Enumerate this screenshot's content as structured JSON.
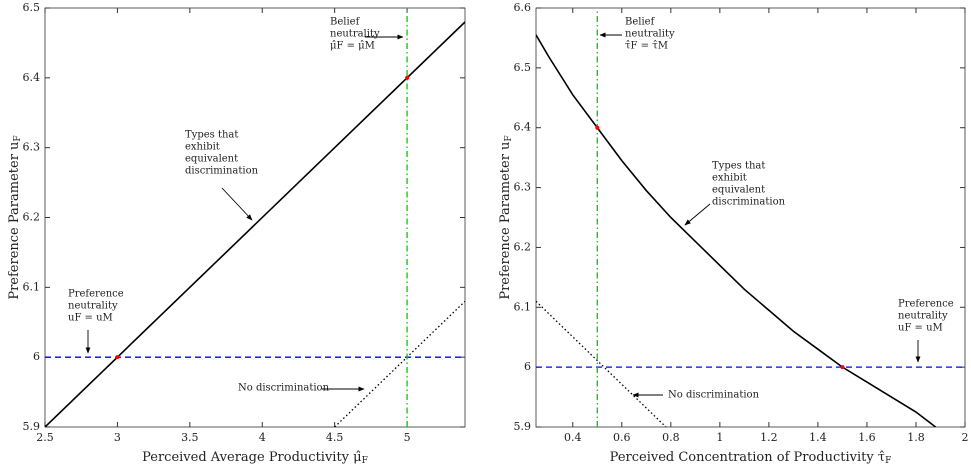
{
  "chart_data": [
    {
      "type": "line",
      "xlabel": "Perceived Average Productivity",
      "xlabel_symbol": "μ̂",
      "xlabel_sub": "F",
      "ylabel": "Preference Parameter",
      "ylabel_symbol": "u",
      "ylabel_sub": "F",
      "xlim": [
        2.5,
        5.4
      ],
      "ylim": [
        5.9,
        6.5
      ],
      "xticks": [
        2.5,
        3,
        3.5,
        4,
        4.5,
        5
      ],
      "yticks": [
        5.9,
        6,
        6.1,
        6.2,
        6.3,
        6.4,
        6.5
      ],
      "series": [
        {
          "style": "solid",
          "color": "#000000",
          "x": [
            2.5,
            5.4
          ],
          "values": [
            5.9,
            6.48
          ]
        },
        {
          "style": "dotted",
          "color": "#000000",
          "x": [
            4.5,
            5.4
          ],
          "values": [
            5.9,
            6.08
          ]
        },
        {
          "style": "dashed",
          "color": "#0000ff",
          "x": [
            2.5,
            5.4
          ],
          "values": [
            6,
            6
          ]
        },
        {
          "style": "dashdot",
          "color": "#00cc00",
          "x": [
            5,
            5
          ],
          "values": [
            5.9,
            6.5
          ]
        },
        {
          "style": "markers",
          "color": "#ff0000",
          "x": [
            3,
            5
          ],
          "values": [
            6,
            6.4
          ]
        }
      ],
      "annotations": [
        [
          "Belief",
          "neutrality",
          "μ̂F = μ̂M"
        ],
        [
          "Types that",
          "exhibit",
          "equivalent",
          "discrimination"
        ],
        [
          "Preference",
          "neutrality",
          "uF = uM"
        ],
        [
          "No discrimination"
        ]
      ]
    },
    {
      "type": "line",
      "xlabel": "Perceived Concentration of Productivity",
      "xlabel_symbol": "τ̂",
      "xlabel_sub": "F",
      "ylabel": "Preference Parameter",
      "ylabel_symbol": "u",
      "ylabel_sub": "F",
      "xlim": [
        0.25,
        2
      ],
      "ylim": [
        5.9,
        6.6
      ],
      "xticks": [
        0.4,
        0.6,
        0.8,
        1,
        1.2,
        1.4,
        1.6,
        1.8,
        2
      ],
      "yticks": [
        5.9,
        6,
        6.1,
        6.2,
        6.3,
        6.4,
        6.5,
        6.6
      ],
      "series": [
        {
          "style": "solid",
          "color": "#000000",
          "x": [
            0.25,
            0.3,
            0.4,
            0.5,
            0.6,
            0.7,
            0.8,
            0.9,
            1.0,
            1.1,
            1.2,
            1.3,
            1.4,
            1.5,
            1.6,
            1.7,
            1.8,
            1.88
          ],
          "values": [
            6.555,
            6.52,
            6.455,
            6.4,
            6.345,
            6.295,
            6.25,
            6.21,
            6.17,
            6.13,
            6.095,
            6.06,
            6.03,
            6.0,
            5.975,
            5.95,
            5.925,
            5.9
          ]
        },
        {
          "style": "dotted",
          "color": "#000000",
          "x": [
            0.25,
            0.78
          ],
          "values": [
            6.11,
            5.9
          ]
        },
        {
          "style": "dashed",
          "color": "#0000ff",
          "x": [
            0.25,
            2
          ],
          "values": [
            6,
            6
          ]
        },
        {
          "style": "dashdot",
          "color": "#00cc00",
          "x": [
            0.5,
            0.5
          ],
          "values": [
            5.9,
            6.6
          ]
        },
        {
          "style": "markers",
          "color": "#ff0000",
          "x": [
            0.5,
            1.5
          ],
          "values": [
            6.4,
            6
          ]
        }
      ],
      "annotations": [
        [
          "Belief",
          "neutrality",
          "τ̂F = τ̂M"
        ],
        [
          "Types that",
          "exhibit",
          "equivalent",
          "discrimination"
        ],
        [
          "Preference",
          "neutrality",
          "uF = uM"
        ],
        [
          "No discrimination"
        ]
      ]
    }
  ]
}
